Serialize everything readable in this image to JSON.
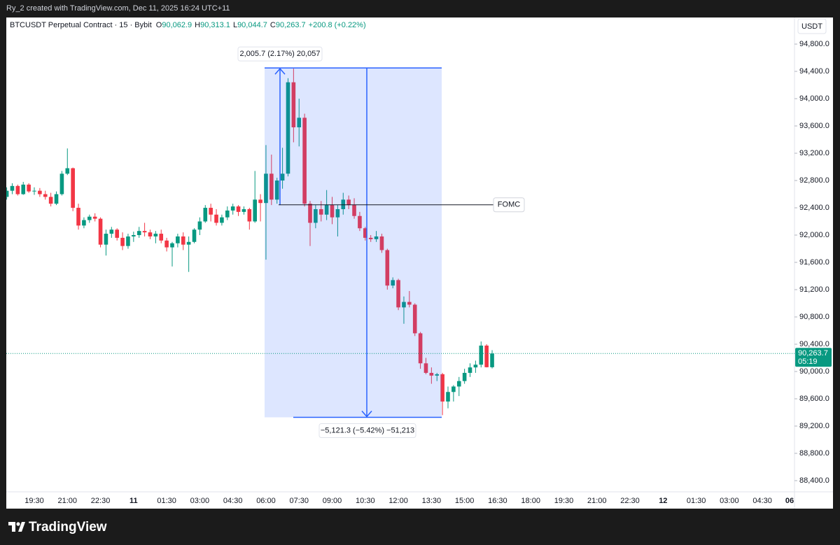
{
  "header": {
    "credit": "Ry_2 created with TradingView.com, Dec 11, 2025 16:24 UTC+11",
    "brand": "TradingView"
  },
  "chart_data": {
    "type": "candlestick",
    "symbol": "BTCUSDT Perpetual Contract · 15 · Bybit",
    "legend": [
      {
        "key": "O",
        "value": "90,062.9"
      },
      {
        "key": "H",
        "value": "90,313.1"
      },
      {
        "key": "L",
        "value": "90,044.7"
      },
      {
        "key": "C",
        "value": "90,263.7"
      }
    ],
    "change": "+200.8 (+0.22%)",
    "currency": "USDT",
    "up_color": "#089981",
    "down_color": "#f23645",
    "categories": [
      null,
      null,
      null,
      null,
      null,
      "19:30",
      null,
      null,
      null,
      null,
      null,
      "21:00",
      null,
      null,
      null,
      null,
      null,
      "22:30",
      null,
      null,
      null,
      null,
      null,
      "11",
      null,
      null,
      null,
      null,
      null,
      "01:30",
      null,
      null,
      null,
      null,
      null,
      "03:00",
      null,
      null,
      null,
      null,
      null,
      "04:30",
      null,
      null,
      null,
      null,
      null,
      "06:00",
      null,
      null,
      null,
      null,
      null,
      "07:30",
      null,
      null,
      null,
      null,
      null,
      "09:00",
      null,
      null,
      null,
      null,
      null,
      "10:30",
      null,
      null,
      null,
      null,
      null,
      "12:00",
      null,
      null,
      null,
      null,
      null,
      "13:30",
      null,
      null,
      null,
      null,
      null,
      "15:00",
      null,
      null,
      null,
      null,
      null,
      "16:30",
      null,
      null,
      null,
      null,
      null,
      "18:00",
      null,
      null,
      null,
      null,
      null,
      "19:30",
      null,
      null,
      null,
      null,
      null,
      "21:00",
      null,
      null,
      null,
      null,
      null,
      "22:30",
      null,
      null,
      null,
      null,
      null,
      "12",
      null,
      null,
      null,
      null,
      null,
      "01:30",
      null,
      null,
      null,
      null,
      null,
      "03:00",
      null,
      null,
      null,
      null,
      null,
      "04:30",
      null,
      null,
      null,
      null,
      null,
      "06"
    ],
    "open": [
      92560,
      92650,
      92720,
      92600,
      92740,
      92640,
      92650,
      92600,
      92560,
      92460,
      92600,
      92900,
      92980,
      92400,
      92140,
      92220,
      92270,
      92240,
      91860,
      92020,
      92080,
      91960,
      91840,
      91980,
      92000,
      92060,
      92040,
      91980,
      92020,
      91920,
      91820,
      91880,
      91980,
      91860,
      91900,
      92080,
      92200,
      92400,
      92300,
      92180,
      92260,
      92360,
      92420,
      92340,
      92380,
      92200,
      92520,
      92470,
      92900,
      92520,
      92800,
      92900,
      94240,
      93580,
      93720,
      92460,
      92180,
      92380,
      92300,
      92440,
      92260,
      92380,
      92520,
      92440,
      92280,
      92100,
      91960,
      91940,
      91980,
      91780,
      91260,
      91340,
      90940,
      91020,
      90980,
      90560,
      90120,
      89980,
      89940,
      89960,
      89560,
      89700,
      89780,
      89860,
      89980,
      90060,
      90100,
      90380,
      90062.9,
      null,
      null,
      null,
      null,
      null,
      null,
      null,
      null,
      null,
      null,
      null,
      null,
      null,
      null,
      null,
      null,
      null,
      null,
      null,
      null,
      null,
      null,
      null,
      null,
      null,
      null,
      null,
      null,
      null,
      null,
      null,
      null,
      null,
      null,
      null,
      null,
      null,
      null,
      null,
      null,
      null,
      null,
      null,
      null,
      null,
      null,
      null,
      null,
      null,
      null,
      null,
      null,
      null,
      null,
      null
    ],
    "high": [
      92700,
      92760,
      92740,
      92780,
      92760,
      92700,
      92690,
      92650,
      92620,
      92640,
      92940,
      93270,
      92990,
      92460,
      92260,
      92300,
      92320,
      92260,
      92080,
      92120,
      92100,
      92040,
      92020,
      92050,
      92120,
      92180,
      92080,
      92060,
      92080,
      91960,
      91900,
      92020,
      92040,
      91980,
      92100,
      92260,
      92440,
      92460,
      92380,
      92300,
      92420,
      92460,
      92440,
      92420,
      92400,
      92940,
      92600,
      93320,
      93180,
      92840,
      93280,
      94300,
      94440,
      94000,
      93780,
      92500,
      92440,
      92500,
      92660,
      92560,
      92440,
      92620,
      92580,
      92540,
      92340,
      92120,
      92000,
      92060,
      92020,
      91800,
      91380,
      91360,
      91100,
      91180,
      91000,
      90580,
      90200,
      90060,
      89980,
      89980,
      89780,
      89800,
      89920,
      90040,
      90120,
      90160,
      90440,
      90400,
      90313.1,
      null,
      null,
      null,
      null,
      null,
      null,
      null,
      null,
      null,
      null,
      null,
      null,
      null,
      null,
      null,
      null,
      null,
      null,
      null,
      null,
      null,
      null,
      null,
      null,
      null,
      null,
      null,
      null,
      null,
      null,
      null,
      null,
      null,
      null,
      null,
      null,
      null,
      null,
      null,
      null,
      null,
      null,
      null,
      null,
      null,
      null,
      null,
      null,
      null,
      null,
      null,
      null,
      null,
      null,
      null
    ],
    "low": [
      92520,
      92600,
      92580,
      92590,
      92620,
      92590,
      92560,
      92520,
      92420,
      92440,
      92580,
      92880,
      92350,
      92080,
      92100,
      92180,
      92200,
      91820,
      91700,
      91960,
      91920,
      91780,
      91800,
      91900,
      91960,
      91980,
      91940,
      91880,
      91880,
      91760,
      91540,
      91820,
      91780,
      91460,
      91880,
      92000,
      92180,
      92200,
      92140,
      92140,
      92220,
      92300,
      92280,
      92300,
      92080,
      92180,
      92200,
      91640,
      92440,
      92460,
      92680,
      92860,
      93360,
      93300,
      92420,
      91840,
      92100,
      92200,
      92220,
      92160,
      91980,
      92300,
      92380,
      92240,
      92060,
      91920,
      91900,
      91900,
      91740,
      91200,
      91220,
      90900,
      90700,
      90940,
      90520,
      90040,
      89960,
      89820,
      89860,
      89360,
      89460,
      89560,
      89640,
      89820,
      89920,
      89980,
      90060,
      90060,
      90044.7,
      null,
      null,
      null,
      null,
      null,
      null,
      null,
      null,
      null,
      null,
      null,
      null,
      null,
      null,
      null,
      null,
      null,
      null,
      null,
      null,
      null,
      null,
      null,
      null,
      null,
      null,
      null,
      null,
      null,
      null,
      null,
      null,
      null,
      null,
      null,
      null,
      null,
      null,
      null,
      null,
      null,
      null,
      null,
      null,
      null,
      null,
      null,
      null,
      null,
      null,
      null,
      null,
      null,
      null,
      null
    ],
    "close": [
      92650,
      92720,
      92600,
      92740,
      92640,
      92650,
      92600,
      92560,
      92460,
      92600,
      92900,
      92980,
      92400,
      92140,
      92220,
      92270,
      92240,
      91860,
      92020,
      92080,
      91960,
      91840,
      91980,
      92000,
      92060,
      92040,
      91980,
      92020,
      91920,
      91820,
      91880,
      91980,
      91860,
      91900,
      92080,
      92200,
      92400,
      92300,
      92180,
      92260,
      92360,
      92420,
      92340,
      92380,
      92200,
      92520,
      92470,
      92900,
      92520,
      92800,
      92900,
      94240,
      93580,
      93720,
      92460,
      92180,
      92380,
      92300,
      92440,
      92260,
      92380,
      92520,
      92440,
      92280,
      92100,
      91960,
      91940,
      91980,
      91780,
      91260,
      91340,
      90940,
      91020,
      90980,
      90560,
      90120,
      89980,
      89940,
      89960,
      89560,
      89700,
      89780,
      89860,
      89980,
      90060,
      90100,
      90380,
      90062.9,
      90263.7,
      null,
      null,
      null,
      null,
      null,
      null,
      null,
      null,
      null,
      null,
      null,
      null,
      null,
      null,
      null,
      null,
      null,
      null,
      null,
      null,
      null,
      null,
      null,
      null,
      null,
      null,
      null,
      null,
      null,
      null,
      null,
      null,
      null,
      null,
      null,
      null,
      null,
      null,
      null,
      null,
      null,
      null,
      null,
      null,
      null,
      null,
      null,
      null,
      null,
      null,
      null,
      null,
      null,
      null,
      null
    ],
    "ylim": [
      88236,
      95190
    ],
    "yticks": [
      {
        "value": 94800,
        "label": "94,800.0"
      },
      {
        "value": 94400,
        "label": "94,400.0"
      },
      {
        "value": 94000,
        "label": "94,000.0"
      },
      {
        "value": 93600,
        "label": "93,600.0"
      },
      {
        "value": 93200,
        "label": "93,200.0"
      },
      {
        "value": 92800,
        "label": "92,800.0"
      },
      {
        "value": 92400,
        "label": "92,400.0"
      },
      {
        "value": 92000,
        "label": "92,000.0"
      },
      {
        "value": 91600,
        "label": "91,600.0"
      },
      {
        "value": 91200,
        "label": "91,200.0"
      },
      {
        "value": 90800,
        "label": "90,800.0"
      },
      {
        "value": 90400,
        "label": "90,400.0"
      },
      {
        "value": 90000,
        "label": "90,000.0"
      },
      {
        "value": 89600,
        "label": "89,600.0"
      },
      {
        "value": 89200,
        "label": "89,200.0"
      },
      {
        "value": 88800,
        "label": "88,800.0"
      },
      {
        "value": 88400,
        "label": "88,400.0"
      }
    ],
    "grid": false,
    "last_price": {
      "label": "90,263.7",
      "countdown": "05:19"
    },
    "annotations": {
      "fomc": {
        "label": "FOMC",
        "price": 92444
      },
      "measure": {
        "top": 94449.7,
        "bottom": 89328.4,
        "up_label": "2,005.7 (2.17%) 20,057",
        "down_label": "−5,121.3 (−5.42%) −51,213"
      }
    }
  }
}
